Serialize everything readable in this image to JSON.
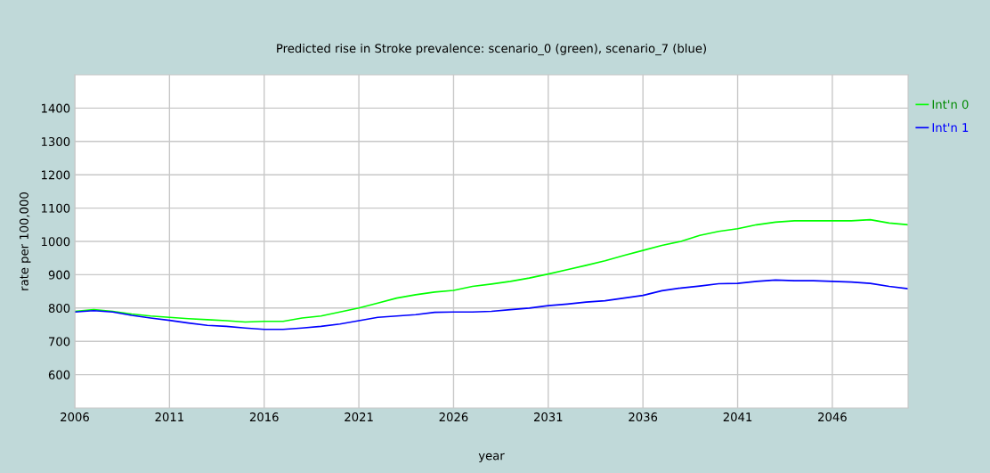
{
  "chart_data": {
    "type": "line",
    "title": "Predicted rise in Stroke prevalence: scenario_0 (green), scenario_7 (blue)",
    "xlabel": "year",
    "ylabel": "rate per 100,000",
    "x": [
      2006,
      2007,
      2008,
      2009,
      2010,
      2011,
      2012,
      2013,
      2014,
      2015,
      2016,
      2017,
      2018,
      2019,
      2020,
      2021,
      2022,
      2023,
      2024,
      2025,
      2026,
      2027,
      2028,
      2029,
      2030,
      2031,
      2032,
      2033,
      2034,
      2035,
      2036,
      2037,
      2038,
      2039,
      2040,
      2041,
      2042,
      2043,
      2044,
      2045,
      2046,
      2047,
      2048,
      2049,
      2050
    ],
    "series": [
      {
        "name": "Int'n 0",
        "color": "#00ff00",
        "values": [
          790,
          795,
          790,
          782,
          776,
          772,
          768,
          765,
          762,
          758,
          760,
          760,
          770,
          776,
          788,
          800,
          815,
          830,
          840,
          848,
          853,
          865,
          872,
          880,
          890,
          902,
          915,
          928,
          942,
          958,
          973,
          988,
          1000,
          1018,
          1030,
          1038,
          1050,
          1058,
          1062,
          1062,
          1062,
          1062,
          1065,
          1055,
          1050
        ]
      },
      {
        "name": "Int'n 1",
        "color": "#0000ff",
        "values": [
          788,
          792,
          788,
          778,
          770,
          763,
          755,
          748,
          745,
          740,
          736,
          736,
          740,
          745,
          752,
          762,
          772,
          776,
          780,
          787,
          788,
          788,
          790,
          795,
          800,
          807,
          812,
          818,
          822,
          830,
          838,
          852,
          860,
          866,
          873,
          874,
          880,
          884,
          882,
          882,
          880,
          878,
          874,
          865,
          858
        ]
      }
    ],
    "xlim": [
      2006,
      2050
    ],
    "xticks": [
      2006,
      2011,
      2016,
      2021,
      2026,
      2031,
      2036,
      2041,
      2046
    ],
    "ylim": [
      500,
      1500
    ],
    "yticks": [
      600,
      700,
      800,
      900,
      1000,
      1100,
      1200,
      1300,
      1400
    ],
    "grid": true,
    "legend": "top right",
    "marker": "none",
    "line_style": "solid"
  }
}
